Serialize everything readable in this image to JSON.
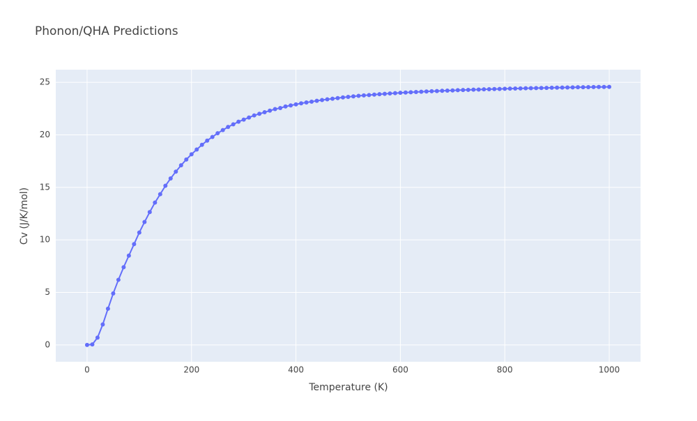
{
  "chart_data": {
    "type": "line",
    "title": "Phonon/QHA Predictions",
    "x_label": "Temperature (K)",
    "y_label": "Cv (J/K/mol)",
    "x": [
      0,
      10,
      20,
      30,
      40,
      50,
      60,
      70,
      80,
      90,
      100,
      110,
      120,
      130,
      140,
      150,
      160,
      170,
      180,
      190,
      200,
      210,
      220,
      230,
      240,
      250,
      260,
      270,
      280,
      290,
      300,
      310,
      320,
      330,
      340,
      350,
      360,
      370,
      380,
      390,
      400,
      410,
      420,
      430,
      440,
      450,
      460,
      470,
      480,
      490,
      500,
      510,
      520,
      530,
      540,
      550,
      560,
      570,
      580,
      590,
      600,
      610,
      620,
      630,
      640,
      650,
      660,
      670,
      680,
      690,
      700,
      710,
      720,
      730,
      740,
      750,
      760,
      770,
      780,
      790,
      800,
      810,
      820,
      830,
      840,
      850,
      860,
      870,
      880,
      890,
      900,
      910,
      920,
      930,
      940,
      950,
      960,
      970,
      980,
      990,
      1000
    ],
    "series": [
      {
        "color": "#636efa",
        "values": [
          0,
          0.05,
          0.7,
          1.95,
          3.45,
          4.9,
          6.2,
          7.4,
          8.5,
          9.6,
          10.7,
          11.7,
          12.65,
          13.55,
          14.35,
          15.15,
          15.85,
          16.5,
          17.1,
          17.65,
          18.15,
          18.6,
          19.05,
          19.45,
          19.8,
          20.15,
          20.45,
          20.75,
          21.0,
          21.25,
          21.45,
          21.65,
          21.85,
          22.0,
          22.15,
          22.3,
          22.45,
          22.55,
          22.7,
          22.8,
          22.9,
          23.0,
          23.08,
          23.16,
          23.24,
          23.31,
          23.38,
          23.44,
          23.5,
          23.56,
          23.61,
          23.66,
          23.71,
          23.75,
          23.79,
          23.83,
          23.87,
          23.9,
          23.94,
          23.97,
          24.0,
          24.03,
          24.05,
          24.08,
          24.1,
          24.13,
          24.15,
          24.17,
          24.19,
          24.21,
          24.23,
          24.25,
          24.27,
          24.28,
          24.3,
          24.31,
          24.33,
          24.34,
          24.36,
          24.37,
          24.38,
          24.4,
          24.41,
          24.42,
          24.43,
          24.44,
          24.45,
          24.46,
          24.47,
          24.48,
          24.49,
          24.5,
          24.51,
          24.52,
          24.53,
          24.53,
          24.54,
          24.55,
          24.56,
          24.56,
          24.57
        ]
      }
    ],
    "xlim": [
      -60,
      1060
    ],
    "ylim": [
      -1.6,
      26.2
    ],
    "xticks": [
      0,
      200,
      400,
      600,
      800,
      1000
    ],
    "yticks": [
      0,
      5,
      10,
      15,
      20,
      25
    ],
    "grid": true
  }
}
